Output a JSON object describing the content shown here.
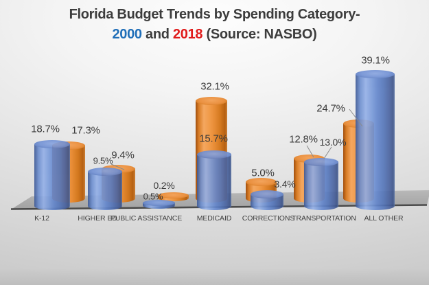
{
  "title": {
    "line1": "Florida Budget Trends by Spending Category-",
    "line2": [
      {
        "text": "2000",
        "color": "#1F6EB8",
        "name": "title-year-2000"
      },
      {
        "text": " and ",
        "color": "#3C3C3C",
        "name": "title-and"
      },
      {
        "text": "2018",
        "color": "#E01A1A",
        "name": "title-year-2018"
      },
      {
        "text": " (Source: NASBO)",
        "color": "#3C3C3C",
        "name": "title-source"
      }
    ]
  },
  "chart_data": {
    "type": "bar",
    "subtype": "3d-cylinder",
    "title": "Florida Budget Trends by Spending Category- 2000 and 2018 (Source: NASBO)",
    "categories": [
      "K-12",
      "HIGHER ED",
      "PUBLIC ASSISTANCE",
      "MEDICAID",
      "CORRECTIONS",
      "TRANSPORTATION",
      "ALL OTHER"
    ],
    "series": [
      {
        "name": "2000",
        "color": "#4A76C4",
        "values": [
          18.7,
          9.5,
          0.5,
          15.7,
          3.4,
          13.0,
          39.1
        ]
      },
      {
        "name": "2018",
        "color": "#E8883B",
        "values": [
          17.3,
          9.4,
          0.2,
          32.1,
          5.0,
          12.8,
          24.7
        ]
      }
    ],
    "value_label_suffix": "%",
    "value_label_decimals": 1,
    "ylim": [
      0,
      40
    ],
    "grid": false,
    "legend": "none",
    "floor_color": "#A9A9A9",
    "xlabel": "",
    "ylabel": ""
  }
}
